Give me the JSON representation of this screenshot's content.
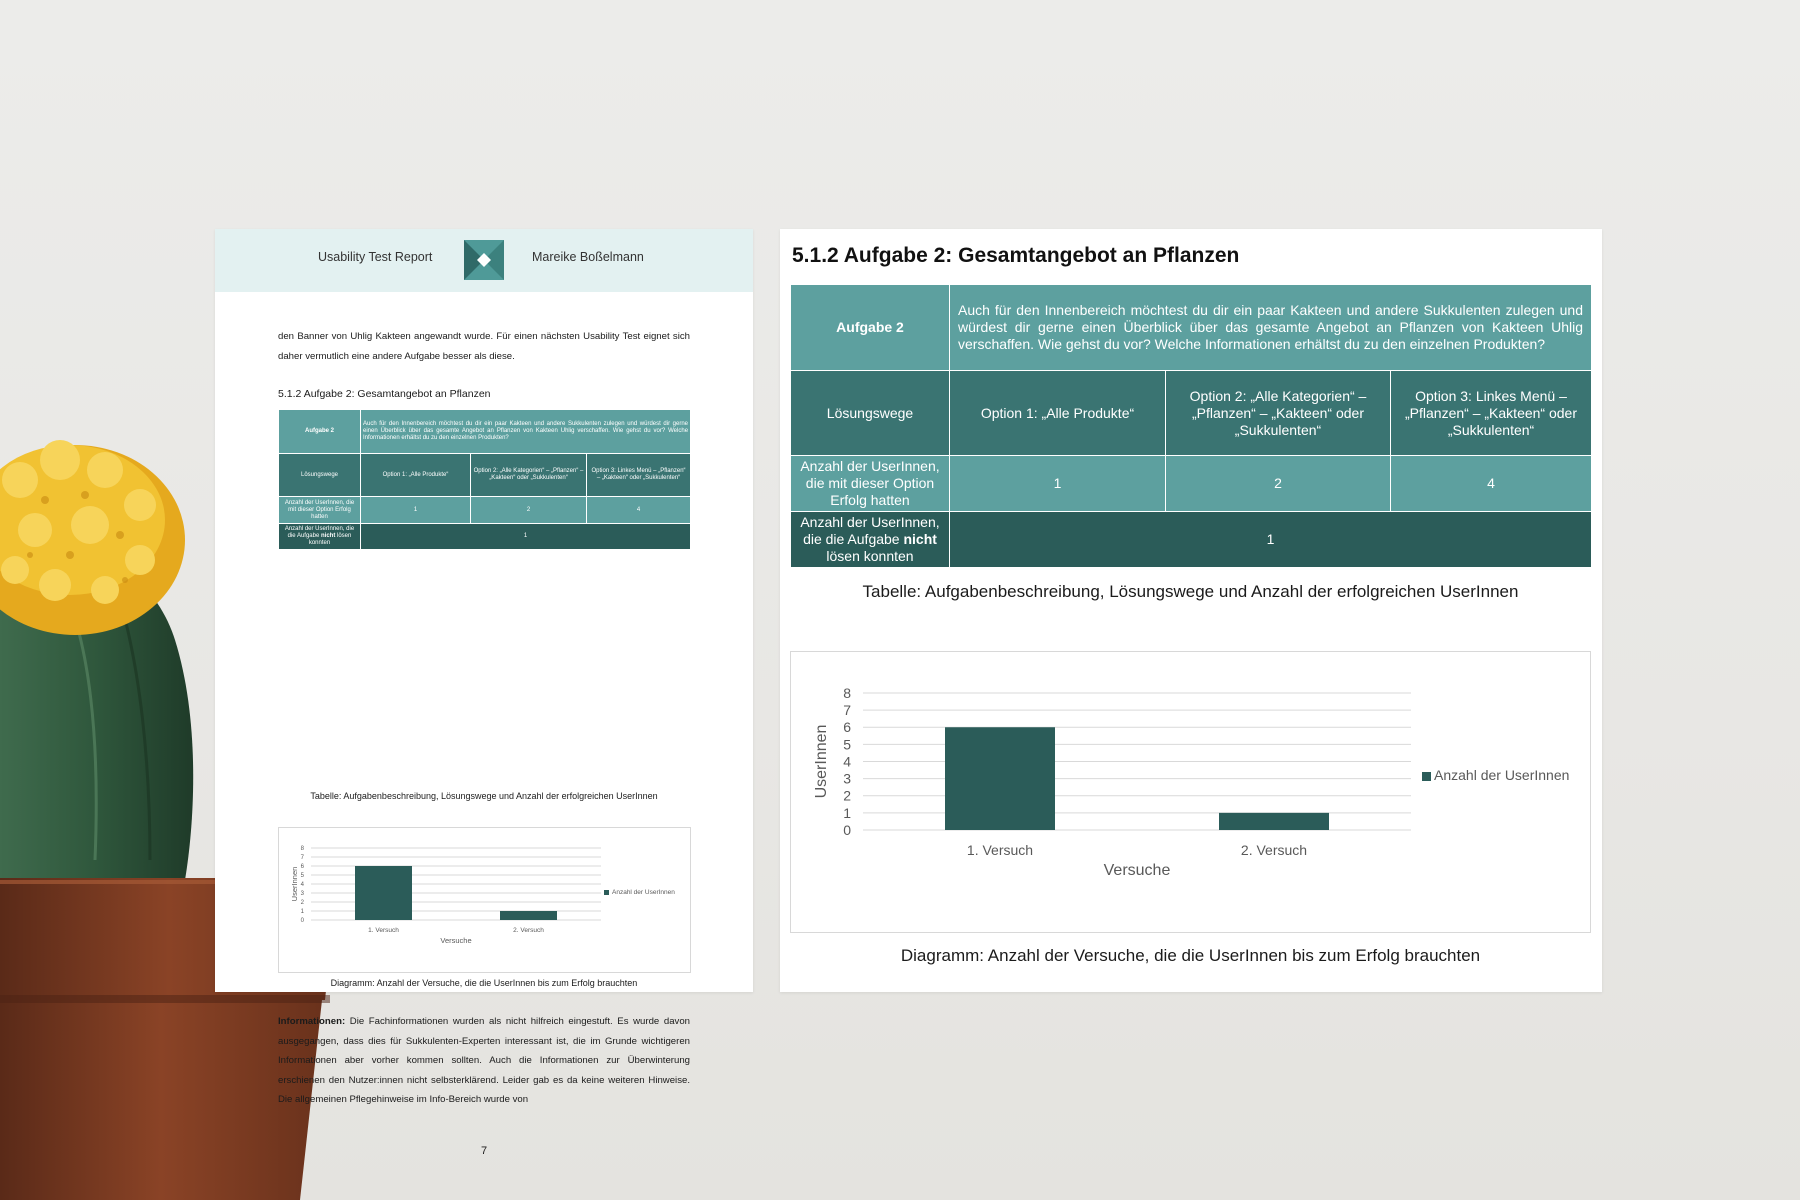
{
  "header": {
    "report_title": "Usability Test Report",
    "author": "Mareike Boßelmann"
  },
  "left_page": {
    "intro_text": "den Banner von Uhlig Kakteen angewandt wurde. Für einen nächsten Usability Test eignet sich daher vermutlich eine andere Aufgabe besser als diese.",
    "section_heading": "5.1.2 Aufgabe 2: Gesamtangebot an Pflanzen",
    "table_caption": "Tabelle: Aufgabenbeschreibung, Lösungswege und Anzahl der erfolgreichen UserInnen",
    "chart_caption": "Diagramm: Anzahl der Versuche, die die UserInnen bis zum Erfolg brauchten",
    "info_label": "Informationen:",
    "info_text": " Die Fachinformationen wurden als nicht hilfreich eingestuft. Es wurde davon ausgegangen, dass dies für Sukkulenten-Experten interessant ist, die im Grunde wichtigeren Informationen aber vorher kommen sollten. Auch die Informationen zur Überwinterung erschienen den Nutzer:innen nicht selbsterklärend. Leider gab es da keine weiteren Hinweise. Die allgemeinen Pflegehinweise im Info-Bereich wurde von",
    "page_number": "7"
  },
  "right_page": {
    "section_heading": "5.1.2 Aufgabe 2: Gesamtangebot an Pflanzen",
    "table_caption": "Tabelle: Aufgabenbeschreibung, Lösungswege und Anzahl der erfolgreichen UserInnen",
    "chart_caption": "Diagramm: Anzahl der Versuche, die die UserInnen bis zum Erfolg brauchten"
  },
  "task_table": {
    "task_label": "Aufgabe 2",
    "task_description": "Auch für den Innenbereich möchtest du dir ein paar Kakteen und andere Sukkulenten zulegen und würdest dir gerne einen Überblick über das gesamte Angebot an Pflanzen von Kakteen Uhlig verschaffen. Wie gehst du vor? Welche Informationen erhältst du zu den einzelnen Produkten?",
    "solutions_label": "Lösungswege",
    "options": [
      "Option 1: „Alle Produkte“",
      "Option 2: „Alle Kategorien“ – „Pflanzen“ – „Kakteen“ oder „Sukkulenten“",
      "Option 3: Linkes Menü – „Pflanzen“ – „Kakteen“ oder „Sukkulenten“"
    ],
    "success_label": "Anzahl der UserInnen, die mit dieser Option Erfolg hatten",
    "success_values": [
      "1",
      "2",
      "4"
    ],
    "fail_label_before": "Anzahl der UserInnen, die die Aufgabe ",
    "fail_label_bold": "nicht",
    "fail_label_after": " lösen konnten",
    "fail_value": "1"
  },
  "chart_data": {
    "type": "bar",
    "categories": [
      "1. Versuch",
      "2. Versuch"
    ],
    "series": [
      {
        "name": "Anzahl der UserInnen",
        "values": [
          6,
          1
        ]
      }
    ],
    "xlabel": "Versuche",
    "ylabel": "UserInnen",
    "ylim": [
      0,
      8
    ],
    "yticks": [
      0,
      1,
      2,
      3,
      4,
      5,
      6,
      7,
      8
    ],
    "grid": true,
    "legend": "right",
    "bar_color": "#2b5c59"
  },
  "colors": {
    "table_light": "#5da09f",
    "table_mid": "#3a7472",
    "table_dark": "#2b5c59",
    "header_band": "#e3f1f1"
  }
}
